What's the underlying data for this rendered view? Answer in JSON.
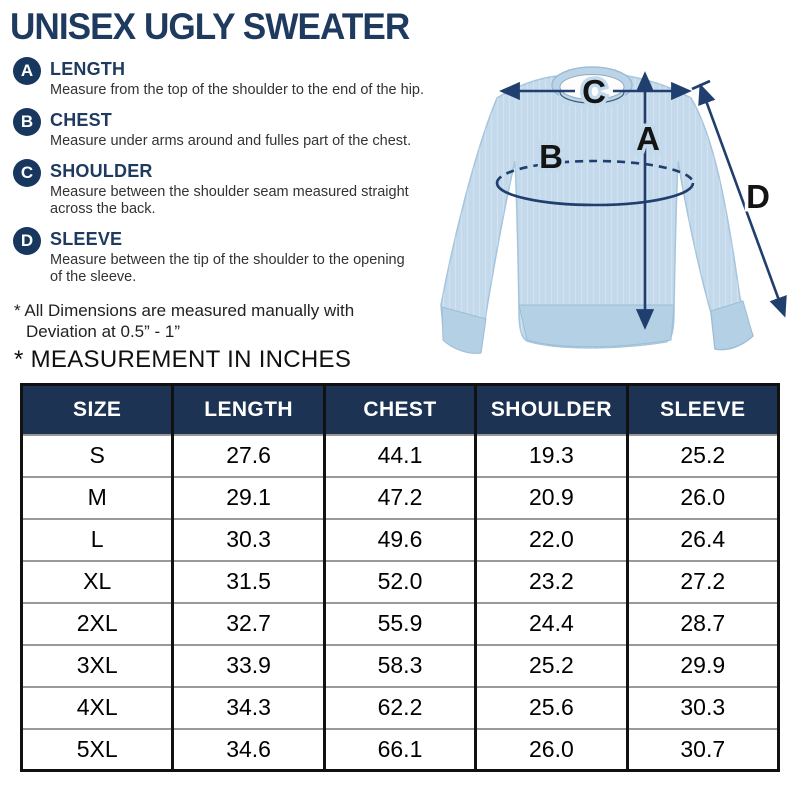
{
  "title": "UNISEX UGLY SWEATER",
  "definitions": [
    {
      "letter": "A",
      "term": "LENGTH",
      "lines": [
        "Measure from the top of the shoulder to the end of the hip."
      ]
    },
    {
      "letter": "B",
      "term": "CHEST",
      "lines": [
        "Measure under arms around and fulles part of the chest."
      ]
    },
    {
      "letter": "C",
      "term": "SHOULDER",
      "lines": [
        "Measure between the shoulder seam measured straight",
        "across the back."
      ]
    },
    {
      "letter": "D",
      "term": "SLEEVE",
      "lines": [
        "Measure between the tip of the shoulder to the opening",
        "of the sleeve."
      ]
    }
  ],
  "note": {
    "line1": "* All Dimensions are measured manually with",
    "line2": "Deviation at 0.5” - 1”"
  },
  "units_heading": "* MEASUREMENT IN INCHES",
  "diagram": {
    "label_a": "A",
    "label_b": "B",
    "label_c": "C",
    "label_d": "D"
  },
  "table": {
    "headers": [
      "SIZE",
      "LENGTH",
      "CHEST",
      "SHOULDER",
      "SLEEVE"
    ],
    "rows": [
      [
        "S",
        "27.6",
        "44.1",
        "19.3",
        "25.2"
      ],
      [
        "M",
        "29.1",
        "47.2",
        "20.9",
        "26.0"
      ],
      [
        "L",
        "30.3",
        "49.6",
        "22.0",
        "26.4"
      ],
      [
        "XL",
        "31.5",
        "52.0",
        "23.2",
        "27.2"
      ],
      [
        "2XL",
        "32.7",
        "55.9",
        "24.4",
        "28.7"
      ],
      [
        "3XL",
        "33.9",
        "58.3",
        "25.2",
        "29.9"
      ],
      [
        "4XL",
        "34.3",
        "62.2",
        "25.6",
        "30.3"
      ],
      [
        "5XL",
        "34.6",
        "66.1",
        "26.0",
        "30.7"
      ]
    ]
  },
  "colors": {
    "navy_text": "#1e3a5f",
    "badge_navy": "#17375f",
    "header_bg": "#1d3354",
    "arrow_navy": "#203e6e",
    "sweater_body": "#c3d9ec"
  }
}
